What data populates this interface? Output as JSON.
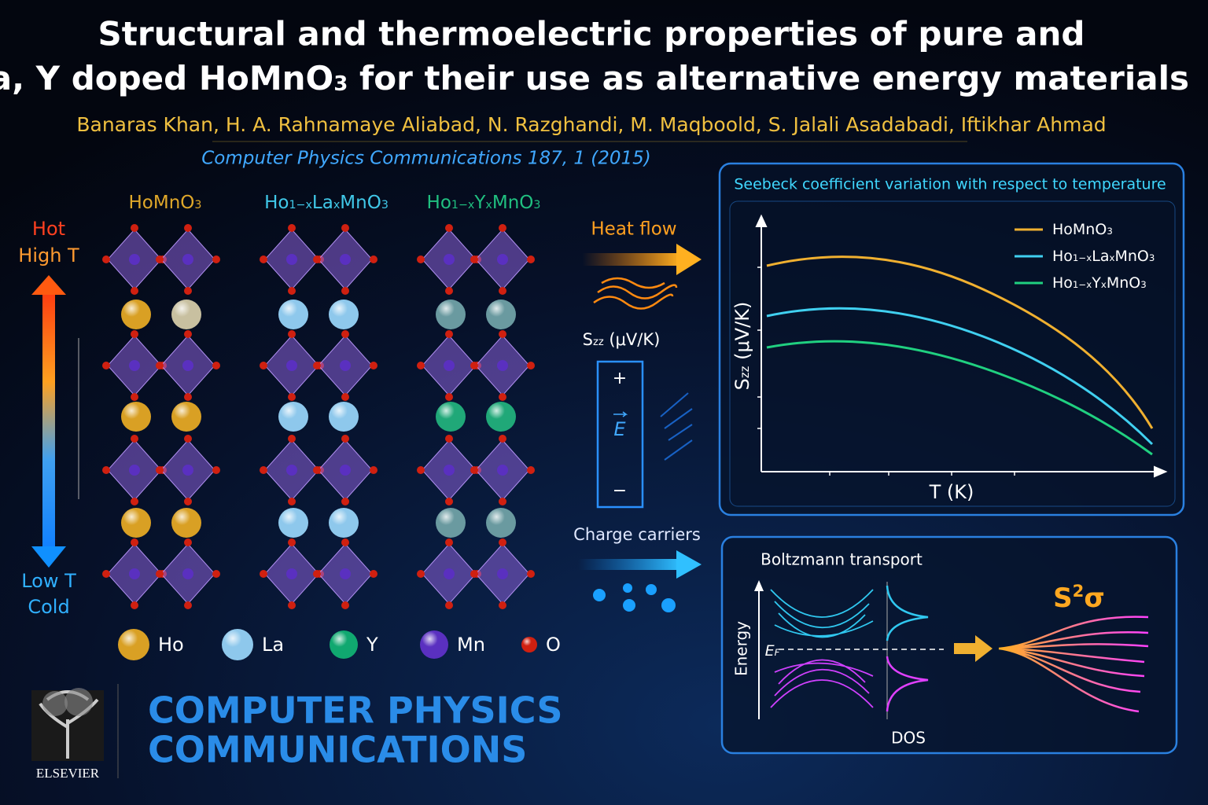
{
  "header": {
    "title_line1": "Structural and thermoelectric properties of pure and",
    "title_line2": [
      {
        "text": "La, Y doped HoMnO"
      },
      {
        "sub": "3"
      },
      {
        "text": " for their use as alternative energy materials"
      }
    ],
    "authors": "Banaras Khan, H. A. Rahnamaye Aliabad, N. Razghandi, M. Maqboold, S. Jalali Asadabadi, Iftikhar Ahmad",
    "citation": "Computer Physics Communications 187, 1 (2015)"
  },
  "structures": [
    {
      "label": [
        {
          "text": "HoMnO"
        },
        {
          "sub": "3"
        }
      ],
      "color": "#e0a82a"
    },
    {
      "label": [
        {
          "text": "Ho"
        },
        {
          "sub": "1−x"
        },
        {
          "text": "La"
        },
        {
          "sub": "x"
        },
        {
          "text": "MnO"
        },
        {
          "sub": "3"
        }
      ],
      "color": "#40c8e8"
    },
    {
      "label": [
        {
          "text": "Ho"
        },
        {
          "sub": "1−x"
        },
        {
          "text": "Y"
        },
        {
          "sub": "x"
        },
        {
          "text": "MnO"
        },
        {
          "sub": "3"
        }
      ],
      "color": "#20c080"
    }
  ],
  "temperature": {
    "hot": "Hot",
    "high": "High T",
    "low": "Low T",
    "cold": "Cold"
  },
  "middle": {
    "heat_flow": "Heat flow",
    "seebeck_label": [
      {
        "text": "S"
      },
      {
        "sub": "zz"
      },
      {
        "text": " (μV/K)"
      }
    ],
    "plus": "+",
    "field": "E",
    "minus": "−",
    "charge_carriers": "Charge carriers"
  },
  "seebeck_panel": {
    "title": "Seebeck coefficient variation with respect to temperature",
    "y_label": [
      {
        "text": "S"
      },
      {
        "sub": "zz"
      },
      {
        "text": " (μV/K)"
      }
    ],
    "x_label": "T (K)",
    "legend": [
      {
        "name": [
          {
            "text": "HoMnO"
          },
          {
            "sub": "3"
          }
        ],
        "color": "#f0b030"
      },
      {
        "name": [
          {
            "text": "Ho"
          },
          {
            "sub": "1−x"
          },
          {
            "text": "La"
          },
          {
            "sub": "x"
          },
          {
            "text": "MnO"
          },
          {
            "sub": "3"
          }
        ],
        "color": "#40d0f0"
      },
      {
        "name": [
          {
            "text": "Ho"
          },
          {
            "sub": "1−x"
          },
          {
            "text": "Y"
          },
          {
            "sub": "x"
          },
          {
            "text": "MnO"
          },
          {
            "sub": "3"
          }
        ],
        "color": "#20d080"
      }
    ]
  },
  "transport_panel": {
    "title": "Boltzmann transport",
    "y_label": "Energy",
    "fermi": [
      {
        "text": "E"
      },
      {
        "sub": "F"
      }
    ],
    "dos": "DOS",
    "power_factor": [
      {
        "text": "S"
      },
      {
        "sup": "2"
      },
      {
        "text": "σ"
      }
    ]
  },
  "atoms": [
    "Ho",
    "La",
    "Y",
    "Mn",
    "O"
  ],
  "journal": {
    "line1": "COMPUTER PHYSICS",
    "line2": "COMMUNICATIONS",
    "publisher": "ELSEVIER"
  }
}
